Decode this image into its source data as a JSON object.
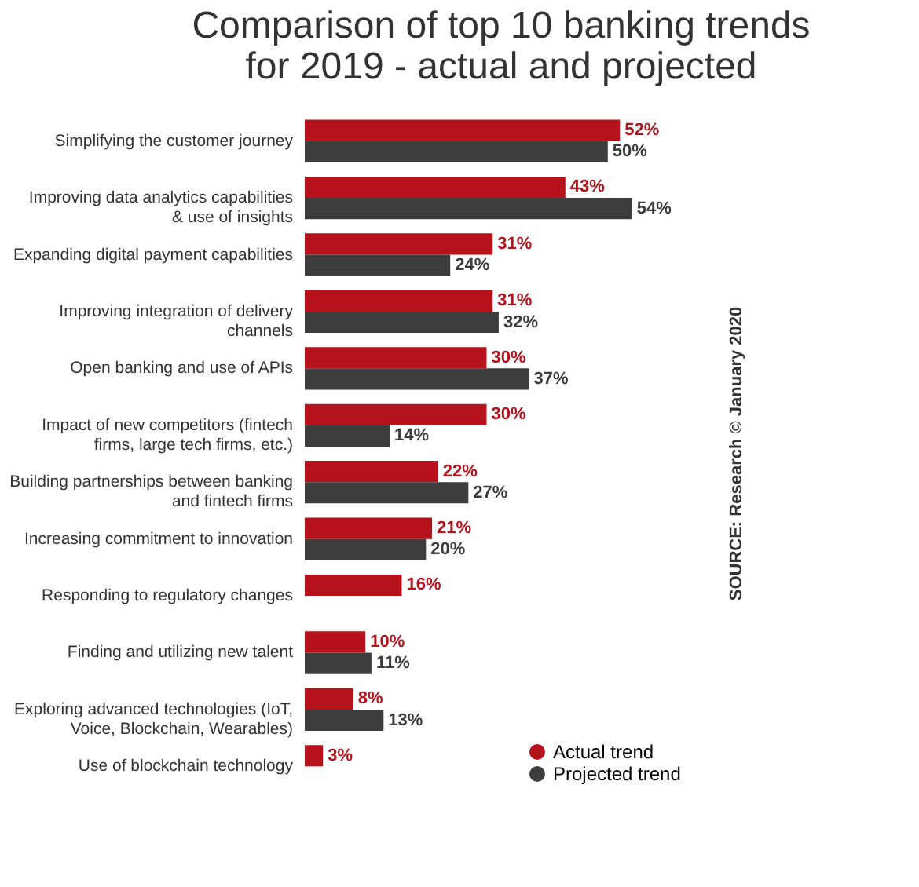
{
  "chart_data": {
    "type": "bar",
    "orientation": "horizontal",
    "title": "Comparison of top 10 banking trends for 2019 - actual and projected",
    "categories": [
      "Simplifying the customer journey",
      "Improving data analytics capabilities & use of insights",
      "Expanding digital payment capabilities",
      "Improving integration of delivery channels",
      "Open banking and use of APIs",
      "Impact of new competitors (fintech firms, large tech firms, etc.)",
      "Building partnerships between banking and fintech firms",
      "Increasing commitment to innovation",
      "Responding to regulatory changes",
      "Finding and utilizing new talent",
      "Exploring advanced technologies (IoT, Voice, Blockchain, Wearables)",
      "Use of blockchain technology"
    ],
    "series": [
      {
        "name": "Actual trend",
        "color": "#b5121b",
        "values": [
          52,
          43,
          31,
          31,
          30,
          30,
          22,
          21,
          16,
          10,
          8,
          3
        ],
        "value_labels": [
          "52%",
          "43%",
          "31%",
          "31%",
          "30%",
          "30%",
          "22%",
          "21%",
          "16%",
          "10%",
          "8%",
          "3%"
        ]
      },
      {
        "name": "Projected trend",
        "color": "#3d3d3d",
        "values": [
          50,
          54,
          24,
          32,
          37,
          14,
          27,
          20,
          null,
          11,
          13,
          null
        ],
        "value_labels": [
          "50%",
          "54%",
          "24%",
          "32%",
          "37%",
          "14%",
          "27%",
          "20%",
          null,
          "11%",
          "13%",
          null
        ]
      }
    ],
    "legend": "bottom right",
    "marker": "circle",
    "grid": false,
    "tick_labels": "y",
    "annotations": [
      "SOURCE: Research © January 2020"
    ]
  }
}
